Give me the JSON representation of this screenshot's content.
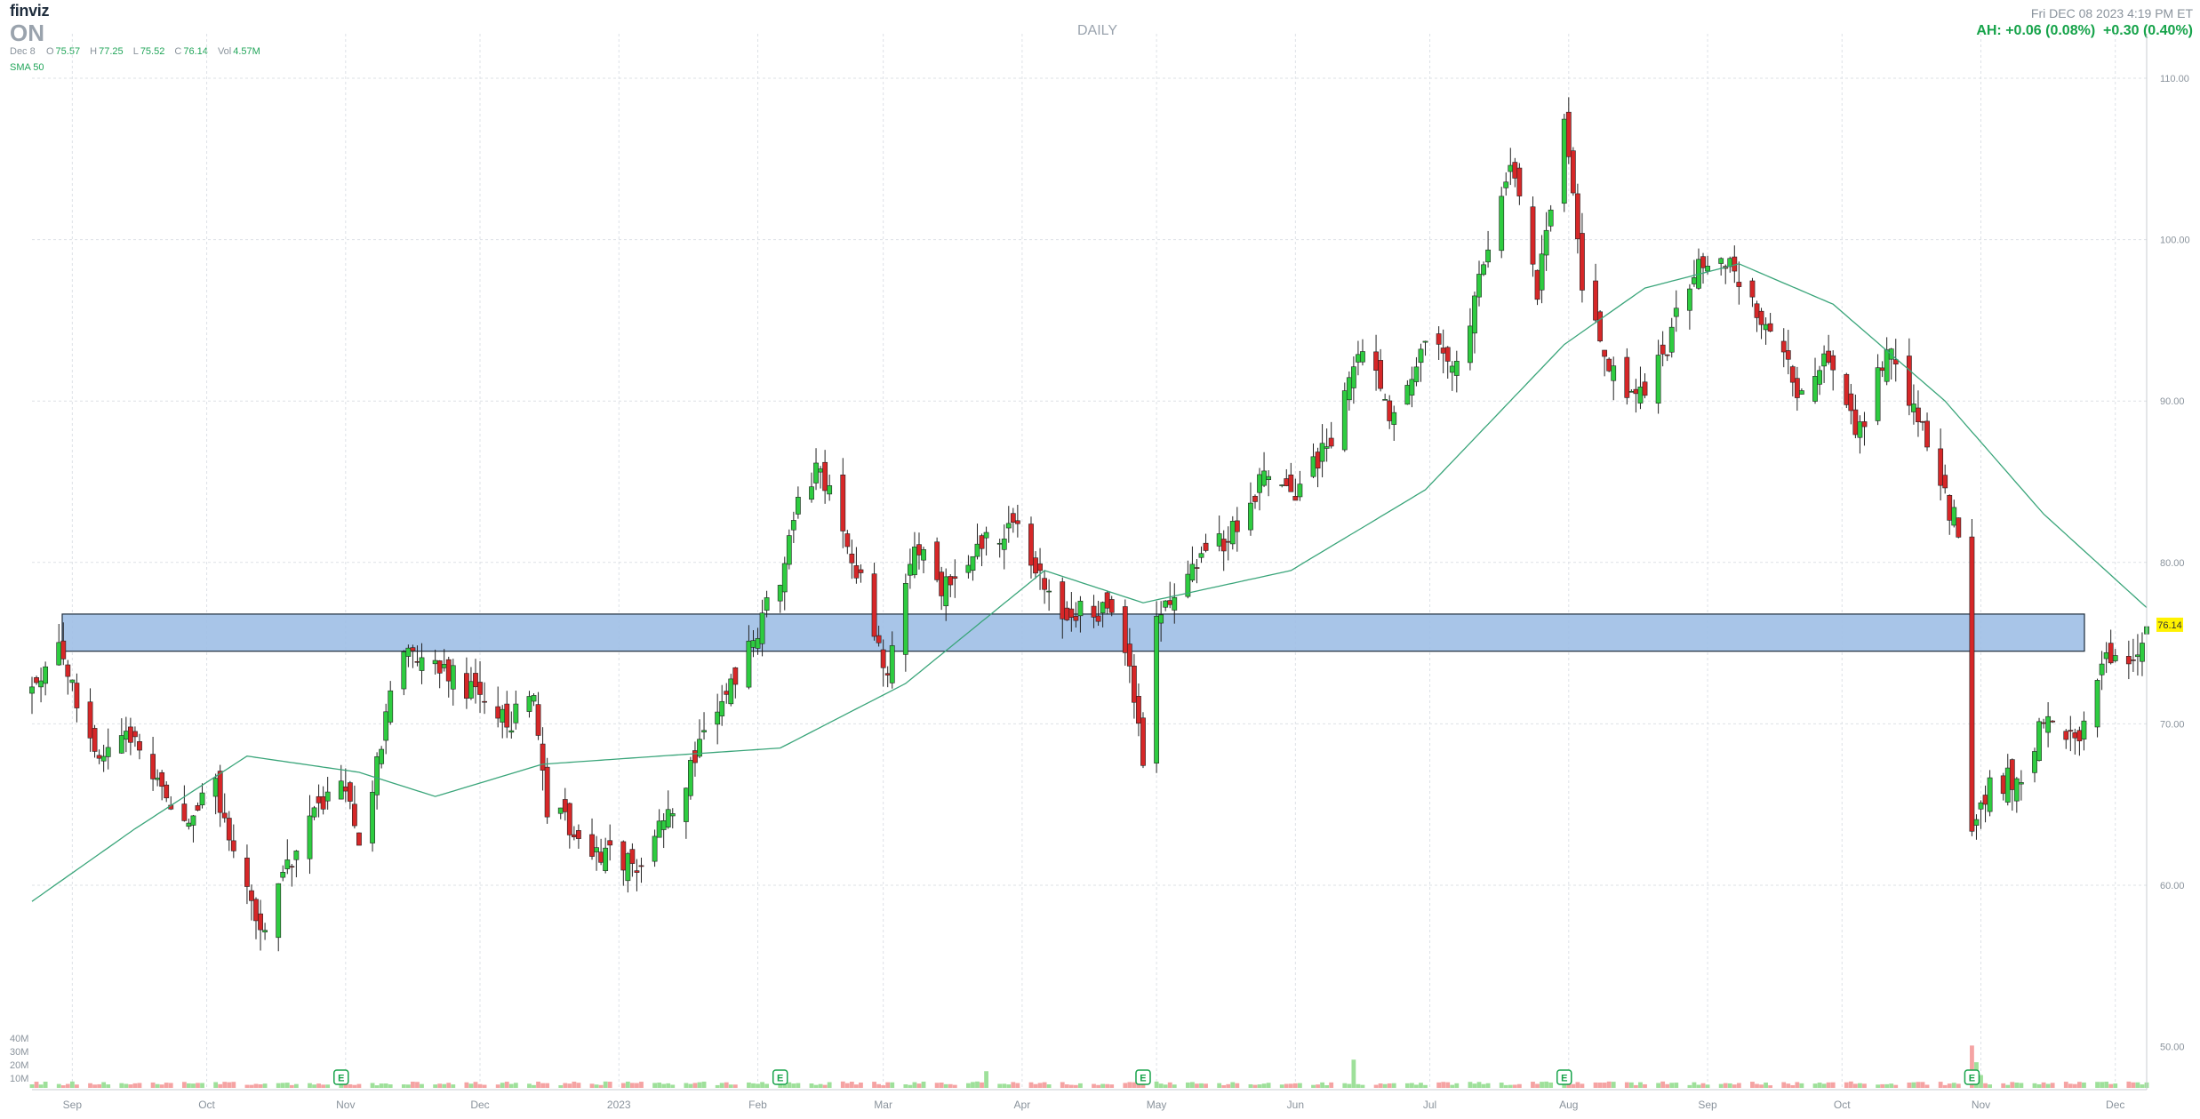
{
  "header": {
    "brand": "finviz",
    "ticker": "ON",
    "period": "DAILY",
    "datetime": "Fri DEC 08 2023 4:19 PM ET",
    "after_hours": "AH: +0.06 (0.08%)",
    "change": "+0.30 (0.40%)",
    "ohlc": {
      "date": "Dec 8",
      "open_label": "O",
      "open": "75.57",
      "high_label": "H",
      "high": "77.25",
      "low_label": "L",
      "low": "75.52",
      "close_label": "C",
      "close": "76.14",
      "vol_label": "Vol",
      "vol": "4.57M"
    },
    "sma_label": "SMA 50"
  },
  "colors": {
    "up": "#2ecc40",
    "down": "#d62728",
    "sma": "#3aa57a",
    "zone_fill": "#9fbfe6",
    "price_badge": "#fff200",
    "vol_up": "#9ee09a",
    "vol_down": "#f5a3a3"
  },
  "chart_data": {
    "type": "candlestick",
    "symbol": "ON",
    "timeframe": "DAILY",
    "y_ticks": [
      "110.00",
      "100.00",
      "90.00",
      "80.00",
      "70.00",
      "60.00",
      "50.00"
    ],
    "ylim": [
      50,
      113
    ],
    "volume_ticks": [
      "40M",
      "30M",
      "20M",
      "10M"
    ],
    "x_labels": [
      "Sep",
      "Oct",
      "Nov",
      "Dec",
      "2023",
      "Feb",
      "Mar",
      "Apr",
      "May",
      "Jun",
      "Jul",
      "Aug",
      "Sep",
      "Oct",
      "Nov",
      "Dec"
    ],
    "date_range": [
      "2022-08-23",
      "2023-12-08"
    ],
    "last_price": "76.14",
    "resistance_zone": [
      74.5,
      76.8
    ],
    "earnings_markers": [
      "E",
      "E",
      "E",
      "E",
      "E"
    ],
    "earnings_dates": [
      "2022-10-31",
      "2023-02-06",
      "2023-04-28",
      "2023-07-31",
      "2023-10-30"
    ],
    "close_waypoints": [
      [
        "2022-08-23",
        72
      ],
      [
        "2022-08-29",
        75
      ],
      [
        "2022-09-06",
        68
      ],
      [
        "2022-09-15",
        69
      ],
      [
        "2022-09-26",
        64
      ],
      [
        "2022-10-03",
        66
      ],
      [
        "2022-10-13",
        57
      ],
      [
        "2022-10-19",
        61
      ],
      [
        "2022-10-31",
        67
      ],
      [
        "2022-11-04",
        62
      ],
      [
        "2022-11-11",
        72
      ],
      [
        "2022-11-15",
        75
      ],
      [
        "2022-11-29",
        72
      ],
      [
        "2022-12-07",
        70
      ],
      [
        "2022-12-13",
        72
      ],
      [
        "2022-12-16",
        65
      ],
      [
        "2022-12-28",
        62
      ],
      [
        "2023-01-05",
        61
      ],
      [
        "2023-01-13",
        65
      ],
      [
        "2023-01-20",
        69
      ],
      [
        "2023-01-27",
        73
      ],
      [
        "2023-02-06",
        79
      ],
      [
        "2023-02-10",
        84
      ],
      [
        "2023-02-15",
        86
      ],
      [
        "2023-02-24",
        79
      ],
      [
        "2023-03-02",
        73
      ],
      [
        "2023-03-08",
        81
      ],
      [
        "2023-03-14",
        78
      ],
      [
        "2023-03-23",
        81
      ],
      [
        "2023-03-31",
        82
      ],
      [
        "2023-04-10",
        77
      ],
      [
        "2023-04-20",
        77
      ],
      [
        "2023-04-25",
        73
      ],
      [
        "2023-04-28",
        68
      ],
      [
        "2023-05-01",
        77
      ],
      [
        "2023-05-10",
        80
      ],
      [
        "2023-05-19",
        82
      ],
      [
        "2023-05-26",
        86
      ],
      [
        "2023-06-01",
        84
      ],
      [
        "2023-06-09",
        88
      ],
      [
        "2023-06-16",
        93
      ],
      [
        "2023-06-23",
        89
      ],
      [
        "2023-06-30",
        94
      ],
      [
        "2023-07-07",
        92
      ],
      [
        "2023-07-14",
        100
      ],
      [
        "2023-07-19",
        105
      ],
      [
        "2023-07-25",
        97
      ],
      [
        "2023-07-31",
        108
      ],
      [
        "2023-08-04",
        97
      ],
      [
        "2023-08-10",
        92
      ],
      [
        "2023-08-18",
        90
      ],
      [
        "2023-08-25",
        95
      ],
      [
        "2023-08-31",
        99
      ],
      [
        "2023-09-07",
        98
      ],
      [
        "2023-09-14",
        95
      ],
      [
        "2023-09-21",
        91
      ],
      [
        "2023-09-28",
        93
      ],
      [
        "2023-10-05",
        88
      ],
      [
        "2023-10-11",
        93
      ],
      [
        "2023-10-18",
        89
      ],
      [
        "2023-10-24",
        84
      ],
      [
        "2023-10-27",
        82
      ],
      [
        "2023-10-30",
        64
      ],
      [
        "2023-11-03",
        66
      ],
      [
        "2023-11-10",
        67
      ],
      [
        "2023-11-15",
        70
      ],
      [
        "2023-11-22",
        69
      ],
      [
        "2023-11-29",
        74
      ],
      [
        "2023-12-05",
        74
      ],
      [
        "2023-12-08",
        76.14
      ]
    ],
    "sma50_waypoints": [
      [
        "2022-08-23",
        59
      ],
      [
        "2022-09-15",
        63.5
      ],
      [
        "2022-10-10",
        68
      ],
      [
        "2022-11-04",
        67
      ],
      [
        "2022-11-21",
        65.5
      ],
      [
        "2022-12-15",
        67.5
      ],
      [
        "2023-01-10",
        68
      ],
      [
        "2023-02-06",
        68.5
      ],
      [
        "2023-03-06",
        72.5
      ],
      [
        "2023-04-06",
        79.5
      ],
      [
        "2023-04-28",
        77.5
      ],
      [
        "2023-05-31",
        79.5
      ],
      [
        "2023-06-30",
        84.5
      ],
      [
        "2023-07-31",
        93.5
      ],
      [
        "2023-08-18",
        97
      ],
      [
        "2023-09-08",
        98.5
      ],
      [
        "2023-09-29",
        96
      ],
      [
        "2023-10-24",
        90
      ],
      [
        "2023-11-15",
        83
      ],
      [
        "2023-12-08",
        77.2
      ]
    ],
    "volume_spikes_millions": [
      [
        "2023-06-14",
        22
      ],
      [
        "2023-03-24",
        13
      ],
      [
        "2023-10-30",
        33
      ],
      [
        "2023-10-31",
        20
      ],
      [
        "2023-11-01",
        10
      ]
    ],
    "grid": true,
    "legend": "top-left"
  }
}
